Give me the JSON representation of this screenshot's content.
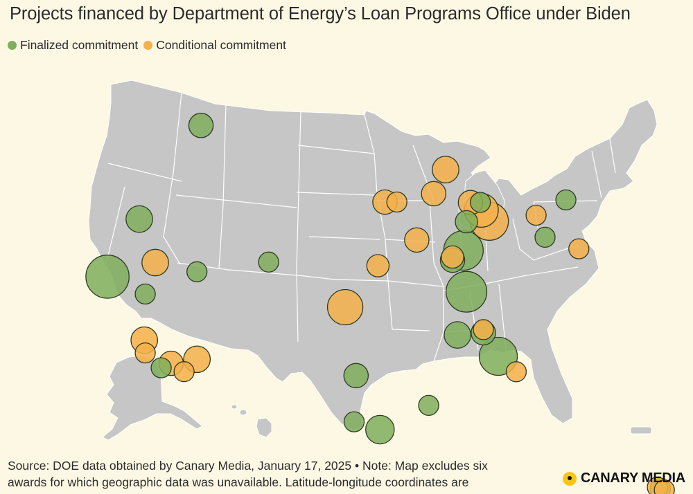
{
  "title": "Projects financed by Department of Energy’s Loan Programs Office under Biden",
  "legend": {
    "finalized": {
      "label": "Finalized commitment",
      "color": "#7fae5c"
    },
    "conditional": {
      "label": "Conditional commitment",
      "color": "#f5b04a"
    }
  },
  "footer": {
    "line1": "Source: DOE data obtained by Canary Media, January 17, 2025 • Note: Map excludes six",
    "line2": "awards for which geographic data was unavailable. Latitude-longitude coordinates are"
  },
  "brand": {
    "name": "CANARY MEDIA"
  },
  "colors": {
    "land": "#c6c6c6",
    "border": "#ffffff",
    "background": "#fdf8e4",
    "outline": "#2e3a24"
  },
  "projects": [
    {
      "status": "finalized",
      "lon": -113.2,
      "lat": 48.3,
      "size": 2
    },
    {
      "status": "finalized",
      "lon": -119.4,
      "lat": 42.3,
      "size": 2.5
    },
    {
      "status": "finalized",
      "lon": -122.6,
      "lat": 38.6,
      "size": 8
    },
    {
      "status": "finalized",
      "lon": -118.8,
      "lat": 37.6,
      "size": 1.2
    },
    {
      "status": "finalized",
      "lon": -113.6,
      "lat": 39.1,
      "size": 1.2
    },
    {
      "status": "finalized",
      "lon": -106.4,
      "lat": 39.8,
      "size": 1.2
    },
    {
      "status": "finalized",
      "lon": -117.2,
      "lat": 33.0,
      "size": 1.2
    },
    {
      "status": "finalized",
      "lon": -97.6,
      "lat": 32.7,
      "size": 2
    },
    {
      "status": "finalized",
      "lon": -97.8,
      "lat": 29.8,
      "size": 1.2
    },
    {
      "status": "finalized",
      "lon": -95.2,
      "lat": 29.3,
      "size": 3
    },
    {
      "status": "finalized",
      "lon": -90.3,
      "lat": 30.8,
      "size": 1.2
    },
    {
      "status": "finalized",
      "lon": -87.4,
      "lat": 35.2,
      "size": 2.5
    },
    {
      "status": "finalized",
      "lon": -84.8,
      "lat": 35.3,
      "size": 2
    },
    {
      "status": "finalized",
      "lon": -83.3,
      "lat": 33.8,
      "size": 6
    },
    {
      "status": "finalized",
      "lon": -86.5,
      "lat": 37.9,
      "size": 7
    },
    {
      "status": "finalized",
      "lon": -86.8,
      "lat": 40.5,
      "size": 6.5
    },
    {
      "status": "finalized",
      "lon": -87.9,
      "lat": 39.9,
      "size": 2
    },
    {
      "status": "finalized",
      "lon": -86.5,
      "lat": 42.3,
      "size": 1.6
    },
    {
      "status": "finalized",
      "lon": -85.1,
      "lat": 43.5,
      "size": 1.2
    },
    {
      "status": "finalized",
      "lon": -76.5,
      "lat": 43.5,
      "size": 1.2
    },
    {
      "status": "finalized",
      "lon": -78.6,
      "lat": 41.2,
      "size": 1.2
    },
    {
      "status": "finalized",
      "lon": -67.0,
      "lat": 25.1,
      "size": 1.2
    },
    {
      "status": "conditional",
      "lon": -117.8,
      "lat": 39.6,
      "size": 2.5
    },
    {
      "status": "conditional",
      "lon": -118.9,
      "lat": 34.7,
      "size": 2.5
    },
    {
      "status": "conditional",
      "lon": -118.8,
      "lat": 33.9,
      "size": 1.2
    },
    {
      "status": "conditional",
      "lon": -116.2,
      "lat": 33.3,
      "size": 2
    },
    {
      "status": "conditional",
      "lon": -113.6,
      "lat": 33.6,
      "size": 2.5
    },
    {
      "status": "conditional",
      "lon": -114.9,
      "lat": 32.8,
      "size": 1.2
    },
    {
      "status": "conditional",
      "lon": -98.7,
      "lat": 37.0,
      "size": 5
    },
    {
      "status": "conditional",
      "lon": -95.4,
      "lat": 39.6,
      "size": 1.6
    },
    {
      "status": "conditional",
      "lon": -94.7,
      "lat": 43.6,
      "size": 2
    },
    {
      "status": "conditional",
      "lon": -93.5,
      "lat": 43.6,
      "size": 1.2
    },
    {
      "status": "conditional",
      "lon": -91.5,
      "lat": 41.2,
      "size": 2
    },
    {
      "status": "conditional",
      "lon": -89.8,
      "lat": 44.1,
      "size": 2
    },
    {
      "status": "conditional",
      "lon": -88.6,
      "lat": 45.6,
      "size": 2.5
    },
    {
      "status": "conditional",
      "lon": -86.1,
      "lat": 43.5,
      "size": 2
    },
    {
      "status": "conditional",
      "lon": -85.0,
      "lat": 43.0,
      "size": 4.5
    },
    {
      "status": "conditional",
      "lon": -84.2,
      "lat": 42.3,
      "size": 6
    },
    {
      "status": "conditional",
      "lon": -87.9,
      "lat": 40.1,
      "size": 1.6
    },
    {
      "status": "conditional",
      "lon": -84.8,
      "lat": 35.5,
      "size": 1.2
    },
    {
      "status": "conditional",
      "lon": -81.5,
      "lat": 32.8,
      "size": 1.2
    },
    {
      "status": "conditional",
      "lon": -79.5,
      "lat": 42.6,
      "size": 1.2
    },
    {
      "status": "conditional",
      "lon": -75.2,
      "lat": 40.4,
      "size": 1.2
    },
    {
      "status": "conditional",
      "lon": -67.3,
      "lat": 25.2,
      "size": 1.2
    },
    {
      "status": "conditional",
      "lon": -66.6,
      "lat": 25.0,
      "size": 1.2
    }
  ]
}
